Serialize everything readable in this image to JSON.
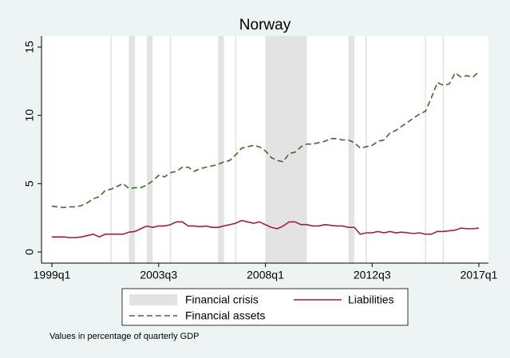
{
  "chart_data": {
    "type": "line",
    "title": "Norway",
    "note": "Values in percentage of quarterly GDP",
    "x": [
      0,
      1,
      2,
      3,
      4,
      5,
      6,
      7,
      8,
      9,
      10,
      11,
      12,
      13,
      14,
      15,
      16,
      17,
      18,
      19,
      20,
      21,
      22,
      23,
      24,
      25,
      26,
      27,
      28,
      29,
      30,
      31,
      32,
      33,
      34,
      35,
      36,
      37,
      38,
      39,
      40,
      41,
      42,
      43,
      44,
      45,
      46,
      47,
      48,
      49,
      50,
      51,
      52,
      53,
      54,
      55,
      56,
      57,
      58,
      59,
      60,
      61,
      62,
      63,
      64,
      65,
      66,
      67,
      68,
      69,
      70,
      71,
      72
    ],
    "xlim": [
      0,
      72
    ],
    "xticks": [
      {
        "value": 0,
        "label": "1999q1"
      },
      {
        "value": 18,
        "label": "2003q3"
      },
      {
        "value": 36,
        "label": "2008q1"
      },
      {
        "value": 54,
        "label": "2012q3"
      },
      {
        "value": 72,
        "label": "2017q1"
      }
    ],
    "ylim": [
      0,
      15
    ],
    "yticks": [
      0,
      5,
      10,
      15
    ],
    "crisis": {
      "name": "Financial crisis",
      "color": "#e3e3e3",
      "spans": [
        [
          10,
          10
        ],
        [
          13,
          14
        ],
        [
          16,
          17
        ],
        [
          20,
          20
        ],
        [
          28,
          29
        ],
        [
          31,
          31
        ],
        [
          36,
          43
        ],
        [
          50,
          51
        ],
        [
          53,
          53
        ],
        [
          63,
          63
        ],
        [
          66,
          66
        ]
      ]
    },
    "series": [
      {
        "name": "Liabilities",
        "color": "#9b2335",
        "dash": "none",
        "values": [
          1.1,
          1.1,
          1.1,
          1.05,
          1.05,
          1.1,
          1.2,
          1.3,
          1.1,
          1.3,
          1.3,
          1.3,
          1.3,
          1.45,
          1.5,
          1.7,
          1.9,
          1.8,
          1.9,
          1.9,
          2.0,
          2.2,
          2.2,
          1.9,
          1.9,
          1.85,
          1.9,
          1.8,
          1.8,
          1.9,
          2.0,
          2.1,
          2.3,
          2.2,
          2.1,
          2.2,
          2.0,
          1.8,
          1.7,
          1.9,
          2.2,
          2.2,
          2.0,
          2.0,
          1.9,
          1.9,
          2.0,
          1.95,
          1.9,
          1.9,
          1.8,
          1.8,
          1.3,
          1.4,
          1.4,
          1.5,
          1.4,
          1.5,
          1.4,
          1.45,
          1.4,
          1.35,
          1.4,
          1.3,
          1.3,
          1.5,
          1.5,
          1.55,
          1.6,
          1.75,
          1.7,
          1.7,
          1.75
        ]
      },
      {
        "name": "Financial assets",
        "color": "#3d6b2a",
        "dash": "7 4",
        "values": [
          3.35,
          3.3,
          3.25,
          3.3,
          3.3,
          3.4,
          3.6,
          3.9,
          4.05,
          4.5,
          4.6,
          4.8,
          5.0,
          4.65,
          4.7,
          4.7,
          4.9,
          5.2,
          5.6,
          5.5,
          5.8,
          5.9,
          6.2,
          6.2,
          5.9,
          6.1,
          6.2,
          6.3,
          6.4,
          6.6,
          6.7,
          7.1,
          7.6,
          7.7,
          7.8,
          7.7,
          7.4,
          6.9,
          6.7,
          6.6,
          7.2,
          7.3,
          7.7,
          7.9,
          7.9,
          8.0,
          8.1,
          8.3,
          8.3,
          8.2,
          8.2,
          8.0,
          7.6,
          7.7,
          7.8,
          8.1,
          8.2,
          8.7,
          8.9,
          9.2,
          9.5,
          9.8,
          10.1,
          10.3,
          11.3,
          12.4,
          12.2,
          12.3,
          13.1,
          12.8,
          12.9,
          12.8,
          13.2
        ]
      }
    ]
  }
}
